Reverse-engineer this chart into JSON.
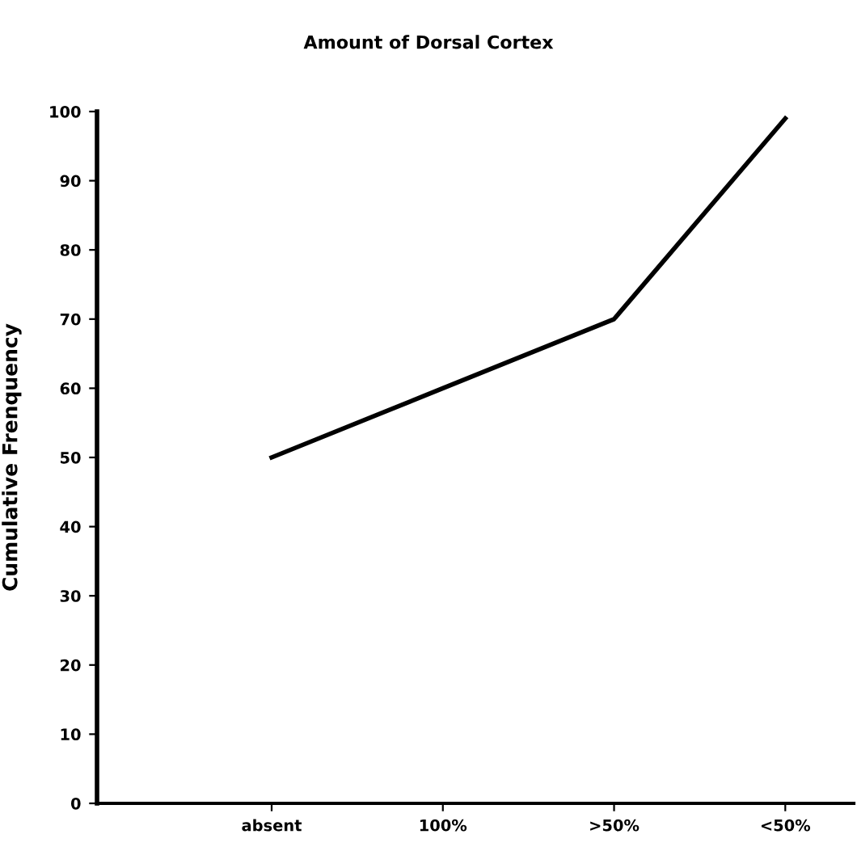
{
  "chart_data": {
    "type": "line",
    "title": "Amount of Dorsal Cortex",
    "ylabel": "Cumulative Frenquency",
    "categories": [
      "absent",
      "100%",
      ">50%",
      "<50%"
    ],
    "series": [
      {
        "color": "#000000",
        "values": [
          50,
          60,
          70,
          99
        ]
      }
    ],
    "ylim": [
      0,
      100
    ],
    "yticks": [
      0,
      10,
      20,
      30,
      40,
      50,
      60,
      70,
      80,
      90,
      100
    ],
    "grid": false,
    "legend": false,
    "marker": "none",
    "line_style": "solid"
  }
}
